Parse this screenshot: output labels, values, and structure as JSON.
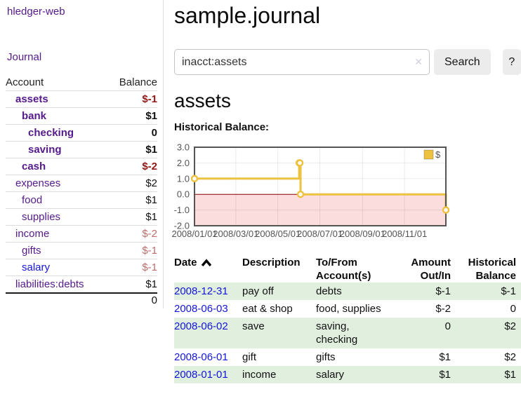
{
  "colors": {
    "link_purple": "#551a8b",
    "link_blue": "#1414dd",
    "negative_strong": "#951717",
    "negative_soft": "#bd6b6b",
    "row_green": "#e0efde",
    "chart_gold": "#edc240"
  },
  "sidebar": {
    "brand": "hledger-web",
    "nav_journal": "Journal",
    "accounts_table": {
      "headers": {
        "account": "Account",
        "balance": "Balance"
      },
      "rows": [
        {
          "name": "assets",
          "balance": "$-1",
          "depth": 0,
          "bold": true,
          "neg": "strong",
          "link": "purple"
        },
        {
          "name": "bank",
          "balance": "$1",
          "depth": 1,
          "bold": true,
          "neg": null,
          "link": "purple"
        },
        {
          "name": "checking",
          "balance": "0",
          "depth": 2,
          "bold": true,
          "neg": null,
          "link": "purple"
        },
        {
          "name": "saving",
          "balance": "$1",
          "depth": 2,
          "bold": true,
          "neg": null,
          "link": "purple"
        },
        {
          "name": "cash",
          "balance": "$-2",
          "depth": 1,
          "bold": true,
          "neg": "strong",
          "link": "purple"
        },
        {
          "name": "expenses",
          "balance": "$2",
          "depth": 0,
          "bold": false,
          "neg": null,
          "link": "purple"
        },
        {
          "name": "food",
          "balance": "$1",
          "depth": 1,
          "bold": false,
          "neg": null,
          "link": "purple"
        },
        {
          "name": "supplies",
          "balance": "$1",
          "depth": 1,
          "bold": false,
          "neg": null,
          "link": "purple"
        },
        {
          "name": "income",
          "balance": "$-2",
          "depth": 0,
          "bold": false,
          "neg": "soft",
          "link": "purple"
        },
        {
          "name": "gifts",
          "balance": "$-1",
          "depth": 1,
          "bold": false,
          "neg": "soft",
          "link": "purple"
        },
        {
          "name": "salary",
          "balance": "$-1",
          "depth": 1,
          "bold": false,
          "neg": "soft",
          "link": "blue"
        },
        {
          "name": "liabilities:debts",
          "balance": "$1",
          "depth": 0,
          "bold": false,
          "neg": null,
          "link": "purple"
        }
      ],
      "total": "0"
    }
  },
  "main": {
    "title": "sample.journal",
    "search": {
      "value": "inacct:assets",
      "clear_icon": "✕",
      "search_button": "Search",
      "help_button": "?"
    },
    "account_heading": "assets",
    "chart_heading": "Historical Balance:"
  },
  "chart_data": {
    "type": "line",
    "step": true,
    "title": "Historical Balance",
    "series": [
      {
        "name": "$",
        "color": "#edc240",
        "points": [
          {
            "date": "2008-01-01",
            "value": 1
          },
          {
            "date": "2008-06-01",
            "value": 2
          },
          {
            "date": "2008-06-02",
            "value": 2
          },
          {
            "date": "2008-06-03",
            "value": 0
          },
          {
            "date": "2008-12-31",
            "value": -1
          }
        ]
      }
    ],
    "x_range": [
      "2008-01-01",
      "2008-12-31"
    ],
    "x_ticks": [
      {
        "date": "2008-01-01",
        "label": "2008/01/01"
      },
      {
        "date": "2008-03-01",
        "label": "2008/03/01"
      },
      {
        "date": "2008-05-01",
        "label": "2008/05/01"
      },
      {
        "date": "2008-07-01",
        "label": "2008/07/01"
      },
      {
        "date": "2008-09-01",
        "label": "2008/09/01"
      },
      {
        "date": "2008-11-01",
        "label": "2008/11/01"
      }
    ],
    "y_ticks": [
      3.0,
      2.0,
      1.0,
      0.0,
      -1.0,
      -2.0
    ],
    "ylim": [
      -2.0,
      3.0
    ],
    "grid": true,
    "legend_position": "top-right",
    "below_zero_fill": "#fbdddd",
    "zero_line_color": "#8b0000",
    "border_color": "#545454",
    "axis_text_color": "#545454"
  },
  "register": {
    "headers": {
      "date": "Date",
      "description": "Description",
      "accounts": "To/From Account(s)",
      "amount": "Amount Out/In",
      "balance": "Historical Balance"
    },
    "rows": [
      {
        "date": "2008-12-31",
        "description": "pay off",
        "accounts": "debts",
        "amount": "$-1",
        "balance": "$-1"
      },
      {
        "date": "2008-06-03",
        "description": "eat & shop",
        "accounts": "food, supplies",
        "amount": "$-2",
        "balance": "0"
      },
      {
        "date": "2008-06-02",
        "description": "save",
        "accounts": "saving, checking",
        "amount": "0",
        "balance": "$2"
      },
      {
        "date": "2008-06-01",
        "description": "gift",
        "accounts": "gifts",
        "amount": "$1",
        "balance": "$2"
      },
      {
        "date": "2008-01-01",
        "description": "income",
        "accounts": "salary",
        "amount": "$1",
        "balance": "$1"
      }
    ]
  }
}
